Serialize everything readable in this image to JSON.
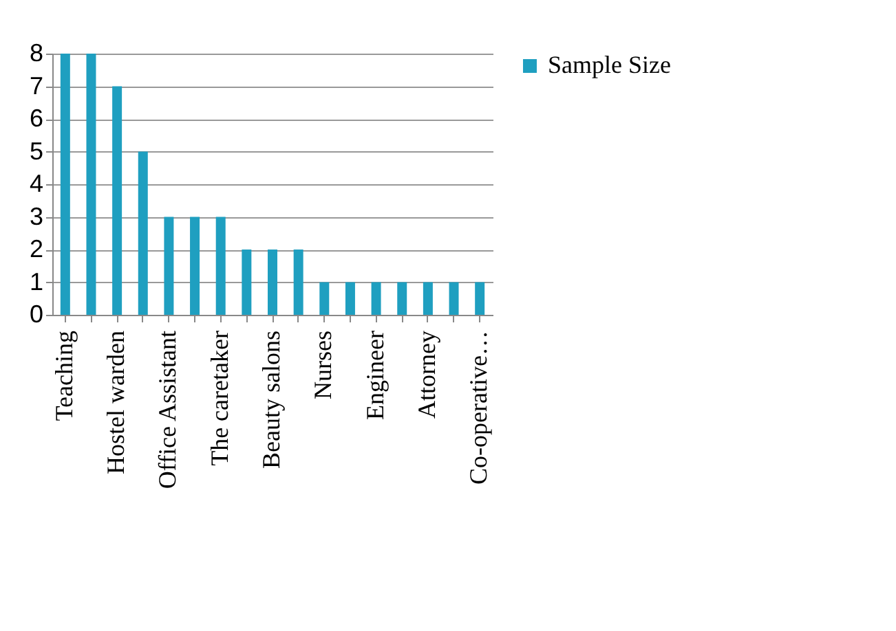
{
  "chart_data": {
    "type": "bar",
    "categories": [
      "Teaching",
      null,
      "Hostel warden",
      null,
      "Office Assistant",
      null,
      "The caretaker",
      null,
      "Beauty salons",
      null,
      "Nurses",
      null,
      "Engineer",
      null,
      "Attorney",
      null,
      "Co-operative…"
    ],
    "series": [
      {
        "name": "Sample Size",
        "color": "#1f9fc0",
        "values": [
          8,
          8,
          7,
          5,
          3,
          3,
          3,
          2,
          2,
          2,
          1,
          1,
          1,
          1,
          1,
          1,
          1
        ]
      }
    ],
    "ylim": [
      0,
      8
    ],
    "yticks": [
      0,
      1,
      2,
      3,
      4,
      5,
      6,
      7,
      8
    ],
    "grid": "y",
    "legend": "right"
  }
}
